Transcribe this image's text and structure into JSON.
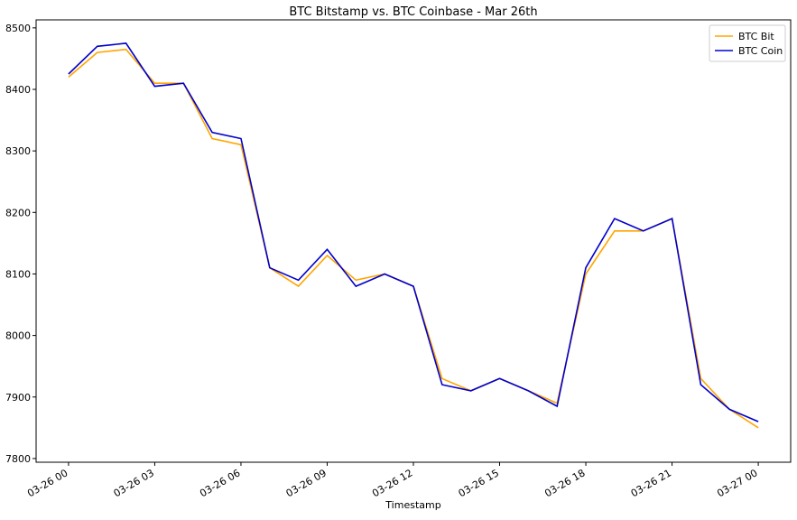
{
  "chart_data": {
    "type": "line",
    "title": "BTC Bitstamp vs. BTC Coinbase - Mar 26th",
    "xlabel": "Timestamp",
    "x": [
      "03-26 00",
      "03-26 01",
      "03-26 02",
      "03-26 03",
      "03-26 04",
      "03-26 05",
      "03-26 06",
      "03-26 07",
      "03-26 08",
      "03-26 09",
      "03-26 10",
      "03-26 11",
      "03-26 12",
      "03-26 13",
      "03-26 14",
      "03-26 15",
      "03-26 16",
      "03-26 17",
      "03-26 18",
      "03-26 19",
      "03-26 20",
      "03-26 21",
      "03-26 22",
      "03-26 23",
      "03-27 00"
    ],
    "series": [
      {
        "name": "BTC Bit",
        "color": "#ffa500",
        "values": [
          8420,
          8460,
          8465,
          8410,
          8410,
          8320,
          8310,
          8110,
          8080,
          8130,
          8090,
          8100,
          8080,
          7930,
          7910,
          7930,
          7910,
          7890,
          8100,
          8170,
          8170,
          8190,
          7930,
          7880,
          7850
        ]
      },
      {
        "name": "BTC Coin",
        "color": "#0000cd",
        "values": [
          8425,
          8470,
          8475,
          8405,
          8410,
          8330,
          8320,
          8110,
          8090,
          8140,
          8080,
          8100,
          8080,
          7920,
          7910,
          7930,
          7910,
          7885,
          8110,
          8190,
          8170,
          8190,
          7920,
          7880,
          7860
        ]
      }
    ],
    "xticks": [
      "03-26 00",
      "03-26 03",
      "03-26 06",
      "03-26 09",
      "03-26 12",
      "03-26 15",
      "03-26 18",
      "03-26 21",
      "03-27 00"
    ],
    "ylim": [
      7794,
      8513
    ],
    "yticks": [
      7800,
      7900,
      8000,
      8100,
      8200,
      8300,
      8400,
      8500
    ],
    "legend": "upper right"
  }
}
